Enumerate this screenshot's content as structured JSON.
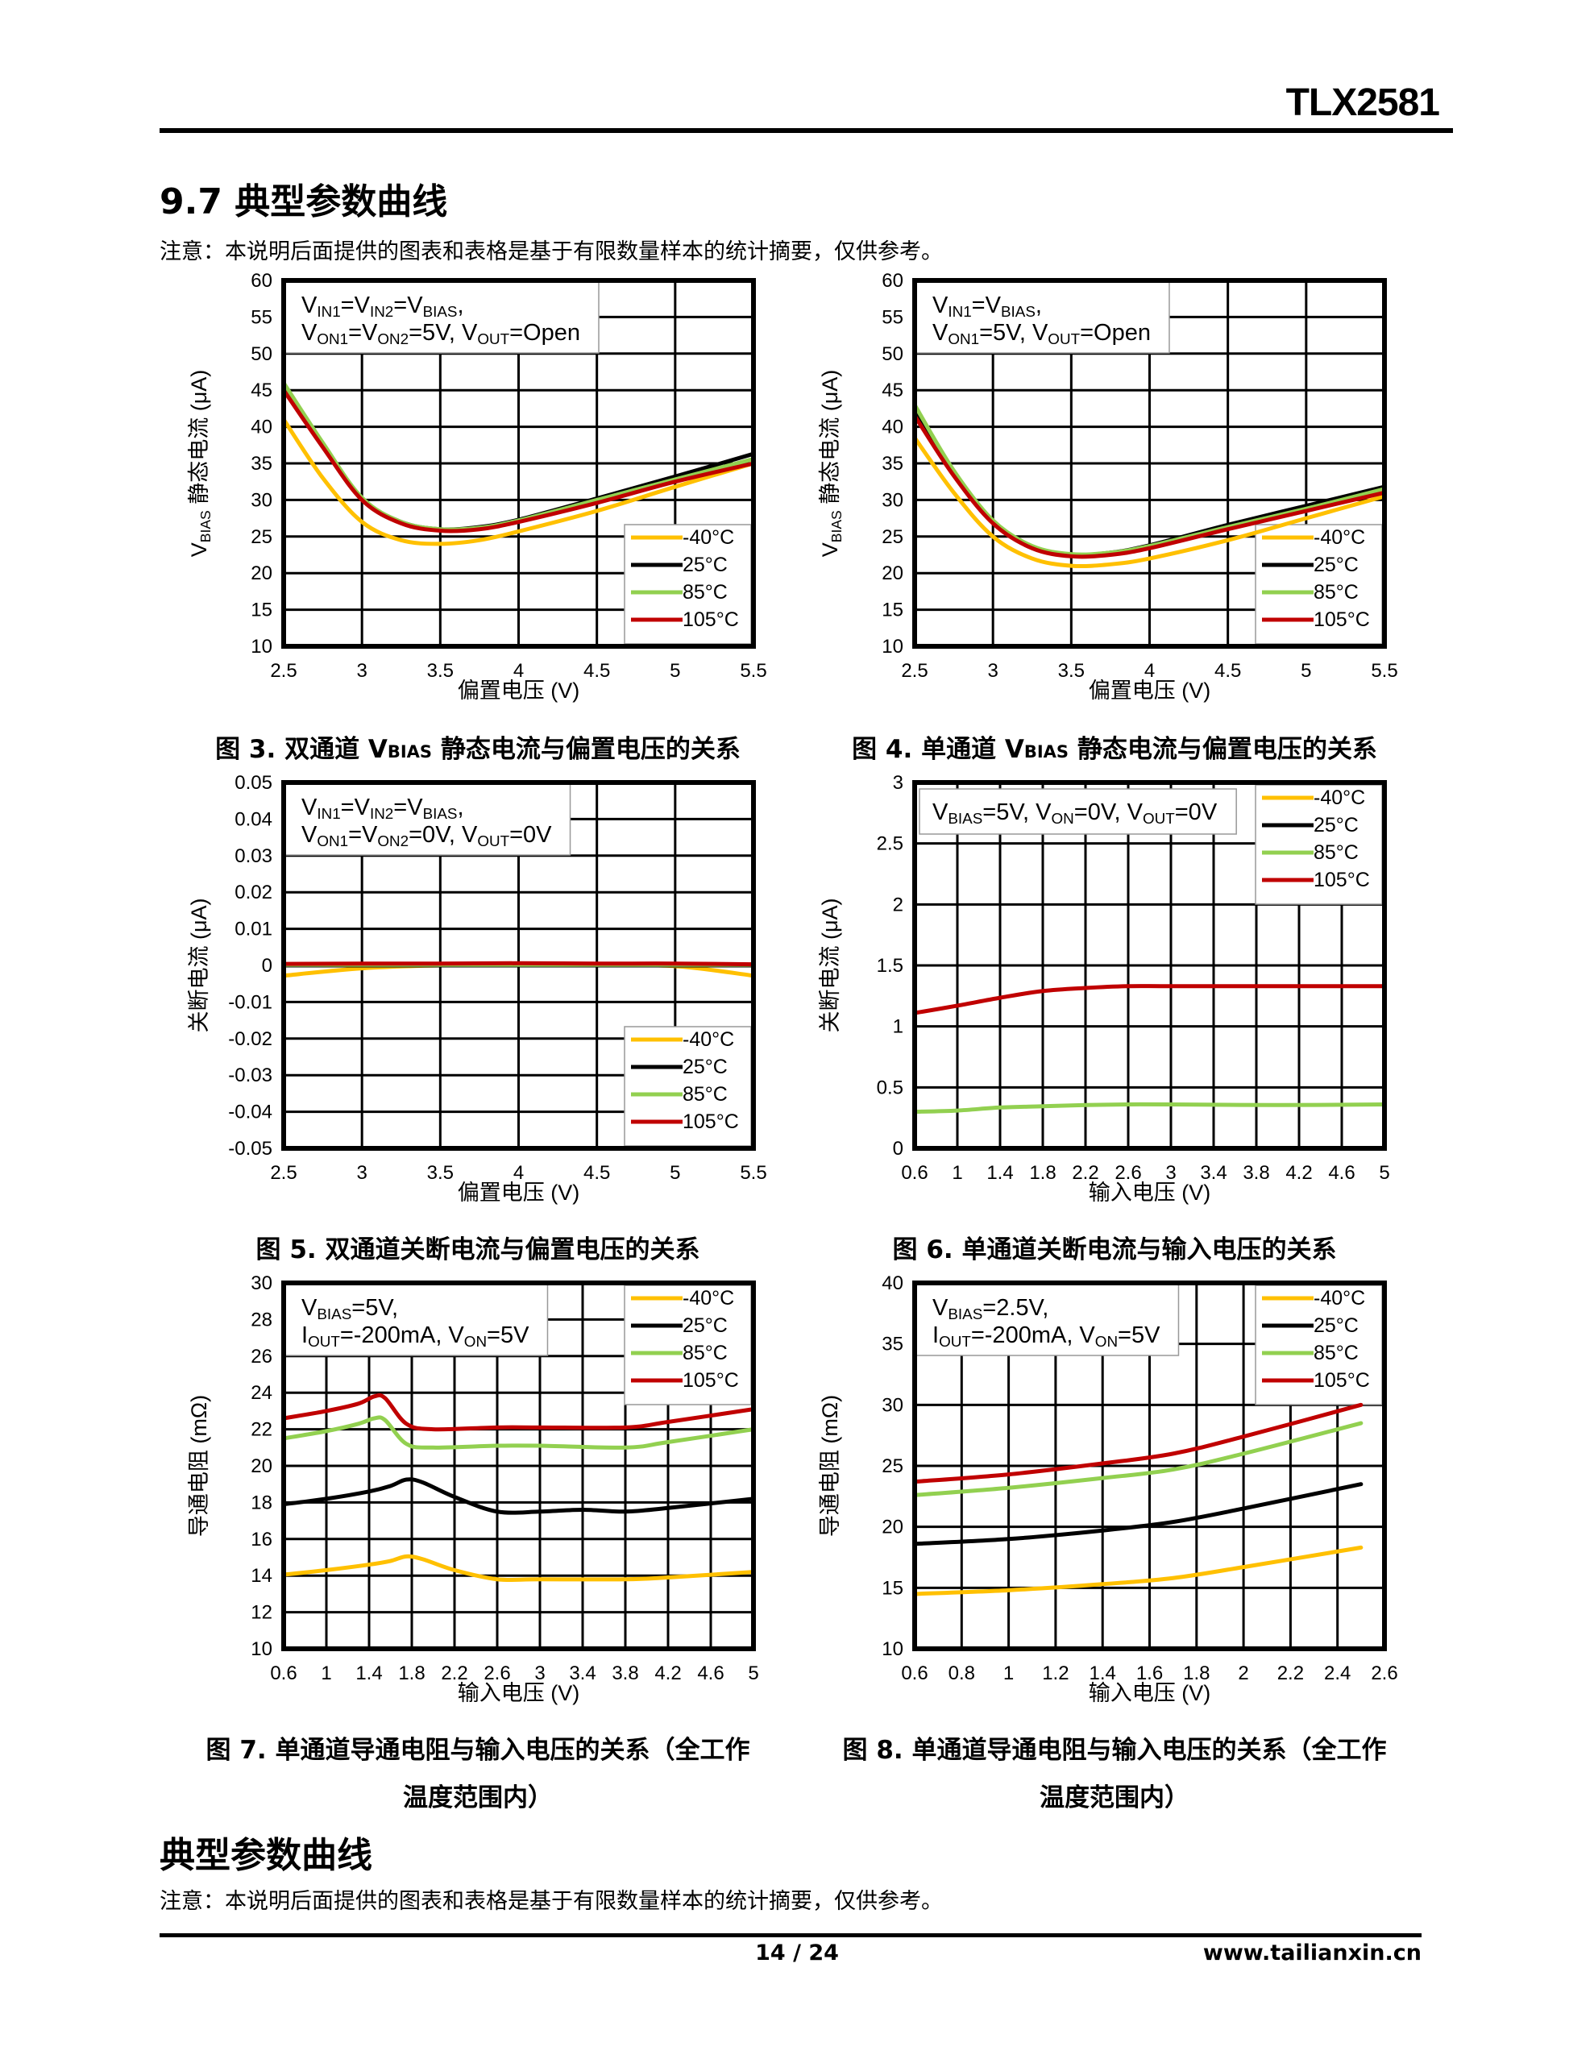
{
  "header": {
    "doc_id": "TLX2581"
  },
  "section": {
    "title": "9.7 典型参数曲线",
    "note": "注意：本说明后面提供的图表和表格是基于有限数量样本的统计摘要，仅供参考。"
  },
  "captions": {
    "fig3": {
      "pre": "图 3. 双通道 V",
      "sub": "BIAS",
      "post": " 静态电流与偏置电压的关系"
    },
    "fig4": {
      "pre": "图 4. 单通道 V",
      "sub": "BIAS",
      "post": " 静态电流与偏置电压的关系"
    },
    "fig5": "图 5. 双通道关断电流与偏置电压的关系",
    "fig6": "图 6. 单通道关断电流与输入电压的关系",
    "fig7": [
      "图 7. 单通道导通电阻与输入电压的关系（全工作",
      "温度范围内）"
    ],
    "fig8": [
      "图 8. 单通道导通电阻与输入电压的关系（全工作",
      "温度范围内）"
    ]
  },
  "section2": {
    "title": "典型参数曲线",
    "note": "注意：本说明后面提供的图表和表格是基于有限数量样本的统计摘要，仅供参考。"
  },
  "footer": {
    "page": "14 / 24",
    "website": "www.tailianxin.cn"
  },
  "legend_colors": {
    "-40°C": "#FFC000",
    "25°C": "#000000",
    "85°C": "#92D050",
    "105°C": "#C00000"
  },
  "chart_data": [
    {
      "id": "fig3",
      "type": "line",
      "xlabel": "偏置电压 (V)",
      "ylabel": "V_{BIAS} 静态电流 (μA)",
      "xlim": [
        2.5,
        5.5
      ],
      "ylim": [
        10,
        60
      ],
      "x_ticks": [
        "2.5",
        "3",
        "3.5",
        "4",
        "4.5",
        "5",
        "5.5"
      ],
      "y_ticks": [
        "10",
        "15",
        "20",
        "25",
        "30",
        "35",
        "40",
        "45",
        "50",
        "55",
        "60"
      ],
      "annotation": [
        "V_{IN1}=V_{IN2}=V_{BIAS},",
        "V_{ON1}=V_{ON2}=5V, V_{OUT}=Open"
      ],
      "legend_position": "bottom-right",
      "grid": true,
      "series": [
        {
          "name": "-40°C",
          "color": "#FFC000",
          "x": [
            2.5,
            2.75,
            3,
            3.25,
            3.5,
            3.75,
            4,
            4.5,
            5,
            5.5
          ],
          "y": [
            41,
            33,
            27,
            24.5,
            24,
            24.5,
            25.7,
            28.5,
            31.8,
            35
          ]
        },
        {
          "name": "25°C",
          "color": "#000000",
          "x": [
            2.5,
            2.75,
            3,
            3.25,
            3.5,
            3.75,
            4,
            4.5,
            5,
            5.5
          ],
          "y": [
            45.5,
            37.5,
            30.2,
            27,
            26,
            26.3,
            27.3,
            30.2,
            33.2,
            36.3
          ]
        },
        {
          "name": "85°C",
          "color": "#92D050",
          "x": [
            2.5,
            2.75,
            3,
            3.25,
            3.5,
            3.75,
            4,
            4.5,
            5,
            5.5
          ],
          "y": [
            46,
            37.8,
            30.3,
            27,
            26,
            26.2,
            27.2,
            30,
            32.8,
            35.6
          ]
        },
        {
          "name": "105°C",
          "color": "#C00000",
          "x": [
            2.5,
            2.75,
            3,
            3.25,
            3.5,
            3.75,
            4,
            4.5,
            5,
            5.5
          ],
          "y": [
            45,
            37.2,
            30,
            26.8,
            25.8,
            26,
            27,
            29.6,
            32.5,
            35
          ]
        }
      ]
    },
    {
      "id": "fig4",
      "type": "line",
      "xlabel": "偏置电压 (V)",
      "ylabel": "V_{BIAS} 静态电流 (μA)",
      "xlim": [
        2.5,
        5.5
      ],
      "ylim": [
        10,
        60
      ],
      "x_ticks": [
        "2.5",
        "3",
        "3.5",
        "4",
        "4.5",
        "5",
        "5.5"
      ],
      "y_ticks": [
        "10",
        "15",
        "20",
        "25",
        "30",
        "35",
        "40",
        "45",
        "50",
        "55",
        "60"
      ],
      "annotation": [
        "V_{IN1}=V_{BIAS},",
        "V_{ON1}=5V, V_{OUT}=Open"
      ],
      "legend_position": "bottom-right",
      "grid": true,
      "series": [
        {
          "name": "-40°C",
          "color": "#FFC000",
          "x": [
            2.5,
            2.75,
            3,
            3.25,
            3.5,
            3.75,
            4,
            4.5,
            5,
            5.5
          ],
          "y": [
            38.5,
            31,
            25,
            22,
            21,
            21.2,
            22,
            24.5,
            27.5,
            30.5
          ]
        },
        {
          "name": "25°C",
          "color": "#000000",
          "x": [
            2.5,
            2.75,
            3,
            3.25,
            3.5,
            3.75,
            4,
            4.5,
            5,
            5.5
          ],
          "y": [
            42,
            33.5,
            27,
            23.6,
            22.5,
            22.8,
            23.8,
            26.6,
            29.2,
            31.8
          ]
        },
        {
          "name": "85°C",
          "color": "#92D050",
          "x": [
            2.5,
            2.75,
            3,
            3.25,
            3.5,
            3.75,
            4,
            4.5,
            5,
            5.5
          ],
          "y": [
            43,
            34,
            27.2,
            23.7,
            22.6,
            22.8,
            23.7,
            26.3,
            28.8,
            31.5
          ]
        },
        {
          "name": "105°C",
          "color": "#C00000",
          "x": [
            2.5,
            2.75,
            3,
            3.25,
            3.5,
            3.75,
            4,
            4.5,
            5,
            5.5
          ],
          "y": [
            41.5,
            33.3,
            26.8,
            23.4,
            22.3,
            22.5,
            23.4,
            26,
            28.5,
            31
          ]
        }
      ]
    },
    {
      "id": "fig5",
      "type": "line",
      "xlabel": "偏置电压 (V)",
      "ylabel": "关断电流 (μA)",
      "xlim": [
        2.5,
        5.5
      ],
      "ylim": [
        -0.05,
        0.05
      ],
      "x_ticks": [
        "2.5",
        "3",
        "3.5",
        "4",
        "4.5",
        "5",
        "5.5"
      ],
      "y_ticks": [
        "-0.05",
        "-0.04",
        "-0.03",
        "-0.02",
        "-0.01",
        "0",
        "0.01",
        "0.02",
        "0.03",
        "0.04",
        "0.05"
      ],
      "annotation": [
        "V_{IN1}=V_{IN2}=V_{BIAS},",
        "V_{ON1}=V_{ON2}=0V, V_{OUT}=0V"
      ],
      "legend_position": "bottom-right",
      "grid": true,
      "series": [
        {
          "name": "-40°C",
          "color": "#FFC000",
          "x": [
            2.5,
            3,
            3.5,
            4,
            4.5,
            5,
            5.5
          ],
          "y": [
            -0.0028,
            -0.0008,
            0,
            0,
            0,
            -0.0002,
            -0.0028
          ]
        },
        {
          "name": "25°C",
          "color": "#000000",
          "x": [
            2.5,
            3,
            3.5,
            4,
            4.5,
            5,
            5.5
          ],
          "y": [
            0,
            0,
            0,
            0,
            0,
            0,
            0
          ]
        },
        {
          "name": "85°C",
          "color": "#92D050",
          "x": [
            2.5,
            3,
            3.5,
            4,
            4.5,
            5,
            5.5
          ],
          "y": [
            0.0002,
            0.0002,
            0.0002,
            0.0002,
            0.0002,
            0.0002,
            0.0002
          ]
        },
        {
          "name": "105°C",
          "color": "#C00000",
          "x": [
            2.5,
            3,
            3.5,
            4,
            4.5,
            5,
            5.5
          ],
          "y": [
            0.0004,
            0.0005,
            0.0005,
            0.0006,
            0.0005,
            0.0005,
            0.0003
          ]
        }
      ]
    },
    {
      "id": "fig6",
      "type": "line",
      "xlabel": "输入电压 (V)",
      "ylabel": "关断电流 (μA)",
      "xlim": [
        0.6,
        5
      ],
      "ylim": [
        0,
        3
      ],
      "x_ticks": [
        "0.6",
        "1",
        "1.4",
        "1.8",
        "2.2",
        "2.6",
        "3",
        "3.4",
        "3.8",
        "4.2",
        "4.6",
        "5"
      ],
      "y_ticks": [
        "0",
        "0.5",
        "1",
        "1.5",
        "2",
        "2.5",
        "3"
      ],
      "annotation": [
        "V_{BIAS}=5V, V_{ON}=0V, V_{OUT}=0V"
      ],
      "legend_position": "top-right",
      "grid": true,
      "series": [
        {
          "name": "-40°C",
          "color": "#FFC000",
          "x": [
            0.6,
            1.8,
            3,
            4.2,
            5
          ],
          "y": [
            0,
            0,
            0,
            0,
            0
          ]
        },
        {
          "name": "25°C",
          "color": "#000000",
          "x": [
            0.6,
            1.8,
            3,
            4.2,
            5
          ],
          "y": [
            0,
            0,
            0,
            0,
            0
          ]
        },
        {
          "name": "85°C",
          "color": "#92D050",
          "x": [
            0.6,
            1,
            1.4,
            1.8,
            2.2,
            2.6,
            3,
            4,
            5
          ],
          "y": [
            0.3,
            0.31,
            0.335,
            0.345,
            0.355,
            0.36,
            0.36,
            0.355,
            0.36
          ]
        },
        {
          "name": "105°C",
          "color": "#C00000",
          "x": [
            0.6,
            1,
            1.4,
            1.8,
            2.2,
            2.6,
            3,
            4,
            5
          ],
          "y": [
            1.11,
            1.17,
            1.235,
            1.29,
            1.315,
            1.33,
            1.33,
            1.33,
            1.33
          ]
        }
      ]
    },
    {
      "id": "fig7",
      "type": "line",
      "xlabel": "输入电压 (V)",
      "ylabel": "导通电阻 (mΩ)",
      "xlim": [
        0.6,
        5
      ],
      "ylim": [
        10,
        30
      ],
      "x_ticks": [
        "0.6",
        "1",
        "1.4",
        "1.8",
        "2.2",
        "2.6",
        "3",
        "3.4",
        "3.8",
        "4.2",
        "4.6",
        "5"
      ],
      "y_ticks": [
        "10",
        "12",
        "14",
        "16",
        "18",
        "20",
        "22",
        "24",
        "26",
        "28",
        "30"
      ],
      "annotation": [
        "V_{BIAS}=5V,",
        "I_{OUT}=-200mA, V_{ON}=5V"
      ],
      "legend_position": "top-right",
      "grid": true,
      "series": [
        {
          "name": "-40°C",
          "color": "#FFC000",
          "x": [
            0.6,
            1,
            1.4,
            1.6,
            1.75,
            1.9,
            2.2,
            2.6,
            3,
            3.8,
            4.2,
            5
          ],
          "y": [
            14.05,
            14.3,
            14.6,
            14.8,
            15.05,
            14.9,
            14.3,
            13.8,
            13.8,
            13.8,
            13.9,
            14.2
          ]
        },
        {
          "name": "25°C",
          "color": "#000000",
          "x": [
            0.6,
            1,
            1.4,
            1.6,
            1.75,
            1.9,
            2.2,
            2.6,
            3,
            3.4,
            3.8,
            4.2,
            5
          ],
          "y": [
            17.9,
            18.2,
            18.6,
            18.9,
            19.25,
            19.1,
            18.3,
            17.5,
            17.5,
            17.6,
            17.5,
            17.7,
            18.2
          ]
        },
        {
          "name": "85°C",
          "color": "#92D050",
          "x": [
            0.6,
            1,
            1.3,
            1.45,
            1.55,
            1.75,
            2,
            2.6,
            3,
            3.8,
            4.2,
            5
          ],
          "y": [
            21.5,
            21.9,
            22.3,
            22.6,
            22.5,
            21.2,
            21,
            21.1,
            21.1,
            21,
            21.3,
            22
          ]
        },
        {
          "name": "105°C",
          "color": "#C00000",
          "x": [
            0.6,
            1,
            1.3,
            1.45,
            1.55,
            1.75,
            2,
            2.6,
            3,
            3.8,
            4.2,
            5
          ],
          "y": [
            22.6,
            23,
            23.4,
            23.8,
            23.7,
            22.3,
            22,
            22.1,
            22.1,
            22.1,
            22.4,
            23.1
          ]
        }
      ]
    },
    {
      "id": "fig8",
      "type": "line",
      "xlabel": "输入电压 (V)",
      "ylabel": "导通电阻 (mΩ)",
      "xlim": [
        0.6,
        2.6
      ],
      "ylim": [
        10,
        40
      ],
      "x_ticks": [
        "0.6",
        "0.8",
        "1",
        "1.2",
        "1.4",
        "1.6",
        "1.8",
        "2",
        "2.2",
        "2.4",
        "2.6"
      ],
      "y_ticks": [
        "10",
        "15",
        "20",
        "25",
        "30",
        "35",
        "40"
      ],
      "annotation": [
        "V_{BIAS}=2.5V,",
        "I_{OUT}=-200mA, V_{ON}=5V"
      ],
      "legend_position": "top-right",
      "grid": true,
      "series": [
        {
          "name": "-40°C",
          "color": "#FFC000",
          "x": [
            0.6,
            1,
            1.4,
            1.7,
            2,
            2.5
          ],
          "y": [
            14.5,
            14.8,
            15.3,
            15.8,
            16.7,
            18.3
          ]
        },
        {
          "name": "25°C",
          "color": "#000000",
          "x": [
            0.6,
            1,
            1.4,
            1.7,
            2,
            2.5
          ],
          "y": [
            18.6,
            19,
            19.7,
            20.4,
            21.5,
            23.5
          ]
        },
        {
          "name": "85°C",
          "color": "#92D050",
          "x": [
            0.6,
            1,
            1.4,
            1.7,
            2,
            2.5
          ],
          "y": [
            22.6,
            23.2,
            24,
            24.7,
            26,
            28.5
          ]
        },
        {
          "name": "105°C",
          "color": "#C00000",
          "x": [
            0.6,
            1,
            1.4,
            1.7,
            2,
            2.5
          ],
          "y": [
            23.7,
            24.3,
            25.2,
            26,
            27.4,
            30
          ]
        }
      ]
    }
  ]
}
